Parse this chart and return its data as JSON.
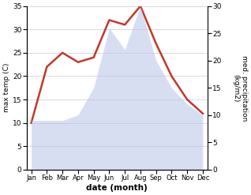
{
  "months": [
    "Jan",
    "Feb",
    "Mar",
    "Apr",
    "May",
    "Jun",
    "Jul",
    "Aug",
    "Sep",
    "Oct",
    "Nov",
    "Dec"
  ],
  "temperature": [
    10,
    22,
    25,
    23,
    24,
    32,
    31,
    35,
    27,
    20,
    15,
    12
  ],
  "precipitation": [
    9,
    9,
    9,
    10,
    15,
    26,
    22,
    30,
    20,
    15,
    12,
    10
  ],
  "temp_color": "#c0392b",
  "precip_color": "#b8c4e8",
  "xlabel": "date (month)",
  "ylabel_left": "max temp (C)",
  "ylabel_right": "med. precipitation\n(kg/m2)",
  "ylim_left": [
    0,
    35
  ],
  "ylim_right": [
    0,
    30
  ],
  "yticks_left": [
    0,
    5,
    10,
    15,
    20,
    25,
    30,
    35
  ],
  "yticks_right": [
    0,
    5,
    10,
    15,
    20,
    25,
    30
  ],
  "bg_color": "#ffffff",
  "grid_color": "#cccccc"
}
